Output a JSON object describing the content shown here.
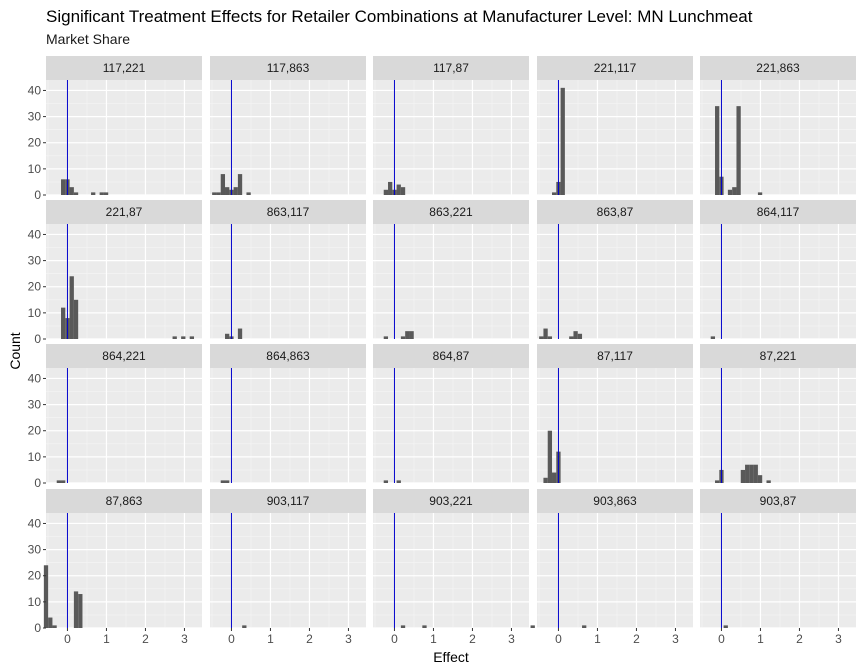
{
  "chart_data": {
    "type": "bar",
    "title": "Significant Treatment Effects for Retailer Combinations at Manufacturer Level: MN Lunchmeat",
    "subtitle": "Market Share",
    "xlabel": "Effect",
    "ylabel": "Count",
    "xlim": [
      -0.55,
      3.45
    ],
    "ylim": [
      0,
      44
    ],
    "x_ticks": [
      0,
      1,
      2,
      3
    ],
    "x_tick_labels": [
      "0",
      "1",
      "2",
      "3"
    ],
    "y_ticks": [
      0,
      10,
      20,
      30,
      40
    ],
    "y_tick_labels": [
      "0",
      "10",
      "20",
      "30",
      "40"
    ],
    "bin_width": 0.11,
    "reference_line_x": 0,
    "reference_line_color": "#0000cc",
    "bar_color": "#595959",
    "panel_background": "#ebebeb",
    "strip_background": "#d9d9d9",
    "grid": true,
    "facet_columns": 5,
    "panels": [
      {
        "label": "117,221",
        "bins": [
          [
            -0.11,
            6
          ],
          [
            0,
            6
          ],
          [
            0.11,
            3
          ],
          [
            0.22,
            1
          ],
          [
            0.66,
            1
          ],
          [
            0.88,
            1
          ],
          [
            0.99,
            1
          ]
        ]
      },
      {
        "label": "117,863",
        "bins": [
          [
            -0.44,
            1
          ],
          [
            -0.33,
            1
          ],
          [
            -0.22,
            8
          ],
          [
            -0.11,
            3
          ],
          [
            0,
            2
          ],
          [
            0.11,
            3
          ],
          [
            0.22,
            8
          ],
          [
            0.44,
            1
          ]
        ]
      },
      {
        "label": "117,87",
        "bins": [
          [
            -0.22,
            2
          ],
          [
            -0.11,
            5
          ],
          [
            0,
            2
          ],
          [
            0.11,
            4
          ],
          [
            0.22,
            3
          ]
        ]
      },
      {
        "label": "221,117",
        "bins": [
          [
            -0.11,
            1
          ],
          [
            0,
            5
          ],
          [
            0.11,
            41
          ]
        ]
      },
      {
        "label": "221,863",
        "bins": [
          [
            -0.11,
            34
          ],
          [
            0,
            7
          ],
          [
            0.22,
            2
          ],
          [
            0.33,
            3
          ],
          [
            0.44,
            34
          ],
          [
            0.99,
            1
          ]
        ]
      },
      {
        "label": "221,87",
        "bins": [
          [
            -0.11,
            12
          ],
          [
            0,
            8
          ],
          [
            0.11,
            24
          ],
          [
            0.22,
            15
          ],
          [
            2.75,
            1
          ],
          [
            2.97,
            1
          ],
          [
            3.19,
            1
          ]
        ]
      },
      {
        "label": "863,117",
        "bins": [
          [
            -0.11,
            2
          ],
          [
            0,
            1
          ],
          [
            0.22,
            4
          ]
        ]
      },
      {
        "label": "863,221",
        "bins": [
          [
            -0.22,
            1
          ],
          [
            0.22,
            1
          ],
          [
            0.33,
            3
          ],
          [
            0.44,
            3
          ]
        ]
      },
      {
        "label": "863,87",
        "bins": [
          [
            -0.44,
            1
          ],
          [
            -0.33,
            4
          ],
          [
            -0.22,
            1
          ],
          [
            0.33,
            1
          ],
          [
            0.44,
            3
          ],
          [
            0.55,
            2
          ]
        ]
      },
      {
        "label": "864,117",
        "bins": [
          [
            -0.22,
            1
          ]
        ]
      },
      {
        "label": "864,221",
        "bins": [
          [
            -0.22,
            1
          ],
          [
            -0.11,
            1
          ]
        ]
      },
      {
        "label": "864,863",
        "bins": [
          [
            -0.22,
            1
          ],
          [
            -0.11,
            1
          ]
        ]
      },
      {
        "label": "864,87",
        "bins": [
          [
            -0.22,
            1
          ],
          [
            0.11,
            1
          ]
        ]
      },
      {
        "label": "87,117",
        "bins": [
          [
            -0.33,
            2
          ],
          [
            -0.22,
            20
          ],
          [
            -0.11,
            4
          ],
          [
            0,
            12
          ]
        ]
      },
      {
        "label": "87,221",
        "bins": [
          [
            -0.11,
            1
          ],
          [
            0,
            5
          ],
          [
            0.55,
            5
          ],
          [
            0.66,
            7
          ],
          [
            0.77,
            7
          ],
          [
            0.88,
            7
          ],
          [
            0.99,
            3
          ],
          [
            1.21,
            1
          ]
        ]
      },
      {
        "label": "87,863",
        "bins": [
          [
            -0.55,
            24
          ],
          [
            -0.44,
            4
          ],
          [
            -0.33,
            1
          ],
          [
            0.22,
            14
          ],
          [
            0.33,
            13
          ]
        ]
      },
      {
        "label": "903,117",
        "bins": [
          [
            0.33,
            1
          ]
        ]
      },
      {
        "label": "903,221",
        "bins": [
          [
            0.22,
            1
          ],
          [
            0.77,
            1
          ]
        ]
      },
      {
        "label": "903,863",
        "bins": [
          [
            -0.66,
            1
          ],
          [
            0.66,
            1
          ]
        ]
      },
      {
        "label": "903,87",
        "bins": [
          [
            0.11,
            1
          ]
        ]
      }
    ]
  }
}
